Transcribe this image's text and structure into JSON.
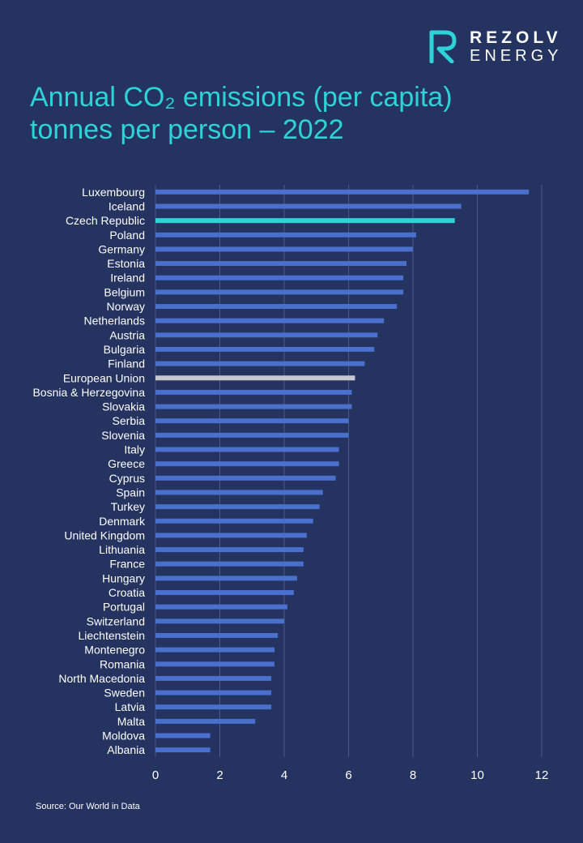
{
  "brand": {
    "name": "REZOLV",
    "sub": "ENERGY",
    "logo_icon": "rezolv-r-logo-icon",
    "accent_color": "#2dd3d8"
  },
  "chart_data": {
    "type": "bar",
    "orientation": "horizontal",
    "title_line1": "Annual CO₂ emissions (per capita)",
    "title_line2": "tonnes per person – 2022",
    "xlim": [
      0,
      12
    ],
    "x_ticks": [
      "0",
      "2",
      "4",
      "6",
      "8",
      "10",
      "12"
    ],
    "grid": true,
    "colors": {
      "default": "#4870cc",
      "highlight": "#2dd3d8",
      "reference": "#c7c9d2"
    },
    "categories": [
      "Luxembourg",
      "Iceland",
      "Czech Republic",
      "Poland",
      "Germany",
      "Estonia",
      "Ireland",
      "Belgium",
      "Norway",
      "Netherlands",
      "Austria",
      "Bulgaria",
      "Finland",
      "European Union",
      "Bosnia & Herzegovina",
      "Slovakia",
      "Serbia",
      "Slovenia",
      "Italy",
      "Greece",
      "Cyprus",
      "Spain",
      "Turkey",
      "Denmark",
      "United Kingdom",
      "Lithuania",
      "France",
      "Hungary",
      "Croatia",
      "Portugal",
      "Switzerland",
      "Liechtenstein",
      "Montenegro",
      "Romania",
      "North Macedonia",
      "Sweden",
      "Latvia",
      "Malta",
      "Moldova",
      "Albania"
    ],
    "values": [
      11.6,
      9.5,
      9.3,
      8.1,
      8.0,
      7.8,
      7.7,
      7.7,
      7.5,
      7.1,
      6.9,
      6.8,
      6.5,
      6.2,
      6.1,
      6.1,
      6.0,
      6.0,
      5.7,
      5.7,
      5.6,
      5.2,
      5.1,
      4.9,
      4.7,
      4.6,
      4.6,
      4.4,
      4.3,
      4.1,
      4.0,
      3.8,
      3.7,
      3.7,
      3.6,
      3.6,
      3.6,
      3.1,
      1.7,
      1.7
    ],
    "highlight": [
      "Czech Republic"
    ],
    "reference": [
      "European Union"
    ]
  },
  "source": "Source: Our World in Data"
}
